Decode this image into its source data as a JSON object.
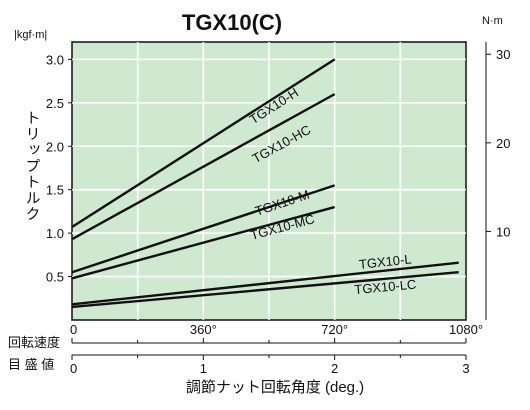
{
  "chart_data": {
    "type": "line",
    "title": "TGX10(C)",
    "left_unit": "|kgf·m|",
    "right_unit": "N·m",
    "ylabel": "トリップトルク",
    "xlabel": "調節ナット回転角度 (deg.)",
    "row_label_1": "回転速度",
    "row_label_2": "目 盛 値",
    "grid": true,
    "xlim": [
      0,
      1080
    ],
    "ylim": [
      0,
      3.2
    ],
    "y_ticks": [
      0.5,
      1.0,
      1.5,
      2.0,
      2.5,
      3.0
    ],
    "y_tick_labels": [
      "0.5",
      "1.0",
      "1.5",
      "2.0",
      "2.5",
      "3.0"
    ],
    "right_ticks_nm": [
      10,
      20,
      30
    ],
    "right_tick_labels": [
      "10",
      "20",
      "30"
    ],
    "angle_ticks": [
      0,
      360,
      720,
      1080
    ],
    "angle_tick_labels": [
      "0",
      "360°",
      "720°",
      "1080°"
    ],
    "scale_ticks": [
      0,
      1,
      2,
      3
    ],
    "scale_tick_labels": [
      "0",
      "1",
      "2",
      "3"
    ],
    "series": [
      {
        "name": "TGX10-H",
        "x": [
          0,
          720
        ],
        "y": [
          1.07,
          3.0
        ],
        "label_x": 560,
        "label_y": 2.42
      },
      {
        "name": "TGX10-HC",
        "x": [
          0,
          720
        ],
        "y": [
          0.93,
          2.6
        ],
        "label_x": 580,
        "label_y": 1.98
      },
      {
        "name": "TGX10-M",
        "x": [
          0,
          720
        ],
        "y": [
          0.55,
          1.55
        ],
        "label_x": 580,
        "label_y": 1.3
      },
      {
        "name": "TGX10-MC",
        "x": [
          0,
          720
        ],
        "y": [
          0.48,
          1.3
        ],
        "label_x": 580,
        "label_y": 1.02
      },
      {
        "name": "TGX10-L",
        "x": [
          0,
          1060
        ],
        "y": [
          0.18,
          0.66
        ],
        "label_x": 860,
        "label_y": 0.62
      },
      {
        "name": "TGX10-LC",
        "x": [
          0,
          1060
        ],
        "y": [
          0.15,
          0.55
        ],
        "label_x": 860,
        "label_y": 0.33
      }
    ]
  }
}
